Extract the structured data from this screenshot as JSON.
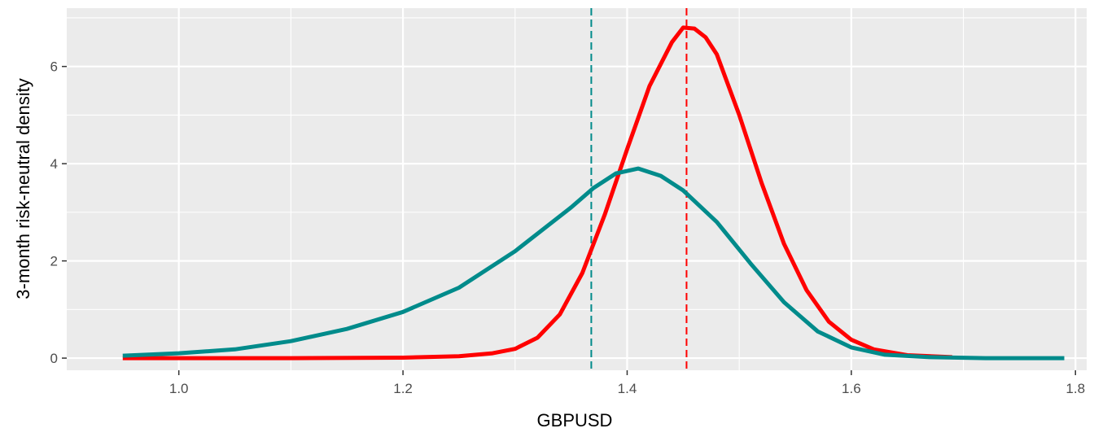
{
  "chart_data": {
    "type": "line",
    "xlabel": "GBPUSD",
    "ylabel": "3-month risk-neutral density",
    "xlim": [
      0.9,
      1.81
    ],
    "ylim": [
      -0.25,
      7.2
    ],
    "x_ticks": [
      1.0,
      1.2,
      1.4,
      1.6,
      1.8
    ],
    "x_tick_labels": [
      "1.0",
      "1.2",
      "1.4",
      "1.6",
      "1.8"
    ],
    "y_ticks": [
      0,
      2,
      4,
      6
    ],
    "y_tick_labels": [
      "0",
      "2",
      "4",
      "6"
    ],
    "grid": true,
    "legend": "none",
    "series": [
      {
        "color": "#ff0000",
        "x": [
          0.95,
          1.0,
          1.1,
          1.2,
          1.25,
          1.28,
          1.3,
          1.32,
          1.34,
          1.36,
          1.38,
          1.4,
          1.42,
          1.44,
          1.45,
          1.46,
          1.47,
          1.48,
          1.5,
          1.52,
          1.54,
          1.56,
          1.58,
          1.6,
          1.62,
          1.65,
          1.69
        ],
        "y": [
          0.0,
          0.0,
          0.0,
          0.01,
          0.04,
          0.1,
          0.19,
          0.42,
          0.9,
          1.75,
          2.95,
          4.3,
          5.6,
          6.5,
          6.8,
          6.78,
          6.6,
          6.25,
          5.0,
          3.6,
          2.35,
          1.4,
          0.75,
          0.38,
          0.18,
          0.06,
          0.02
        ]
      },
      {
        "color": "#008b8b",
        "x": [
          0.95,
          1.0,
          1.05,
          1.1,
          1.15,
          1.2,
          1.25,
          1.3,
          1.35,
          1.37,
          1.39,
          1.41,
          1.43,
          1.45,
          1.48,
          1.51,
          1.54,
          1.57,
          1.6,
          1.63,
          1.67,
          1.72,
          1.79
        ],
        "y": [
          0.05,
          0.1,
          0.18,
          0.35,
          0.6,
          0.95,
          1.45,
          2.2,
          3.1,
          3.5,
          3.8,
          3.9,
          3.75,
          3.45,
          2.8,
          1.95,
          1.15,
          0.55,
          0.22,
          0.07,
          0.02,
          0.0,
          0.0
        ]
      }
    ],
    "vlines": [
      {
        "x": 1.368,
        "color": "#008b8b",
        "style": "dashed"
      },
      {
        "x": 1.453,
        "color": "#ff0000",
        "style": "dashed"
      }
    ],
    "background": "#ebebeb",
    "grid_color": "#ffffff"
  }
}
